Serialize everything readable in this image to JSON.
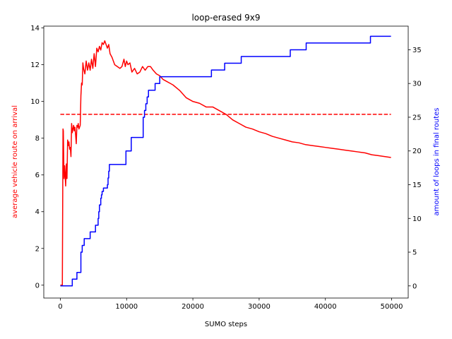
{
  "chart_data": {
    "type": "line",
    "title": "loop-erased 9x9",
    "xlabel": "SUMO steps",
    "ylabel_left": "average vehicle route on arrival",
    "ylabel_right": "amount of loops in final routes",
    "xlim": [
      -2500,
      52500
    ],
    "ylim_left": [
      -0.7,
      14.1
    ],
    "ylim_right": [
      -1.8,
      38.5
    ],
    "x_ticks": [
      0,
      10000,
      20000,
      30000,
      40000,
      50000
    ],
    "x_tick_labels": [
      "0",
      "10000",
      "20000",
      "30000",
      "40000",
      "50000"
    ],
    "y_left_ticks": [
      0,
      2,
      4,
      6,
      8,
      10,
      12,
      14
    ],
    "y_left_tick_labels": [
      "0",
      "2",
      "4",
      "6",
      "8",
      "10",
      "12",
      "14"
    ],
    "y_right_ticks": [
      0,
      5,
      10,
      15,
      20,
      25,
      30,
      35
    ],
    "y_right_tick_labels": [
      "0",
      "5",
      "10",
      "15",
      "20",
      "25",
      "30",
      "35"
    ],
    "grid": false,
    "legend": "none",
    "colors": {
      "left": "#ff0000",
      "right": "#0000ff",
      "axis": "#000000"
    },
    "series": [
      {
        "axis": "left",
        "color": "#ff0000",
        "style": "solid",
        "x": [
          0,
          300,
          400,
          450,
          550,
          650,
          800,
          900,
          1000,
          1100,
          1200,
          1300,
          1400,
          1500,
          1600,
          1700,
          1800,
          1900,
          2000,
          2100,
          2200,
          2300,
          2400,
          2500,
          2600,
          2700,
          2800,
          2900,
          3000,
          3100,
          3200,
          3300,
          3400,
          3500,
          3700,
          3900,
          4100,
          4300,
          4500,
          4700,
          4900,
          5100,
          5300,
          5500,
          5700,
          5900,
          6100,
          6300,
          6500,
          6700,
          6900,
          7100,
          7300,
          7500,
          7800,
          8200,
          8600,
          9000,
          9300,
          9600,
          9800,
          10000,
          10200,
          10500,
          10800,
          11200,
          11600,
          12000,
          12400,
          12800,
          13200,
          13600,
          14000,
          14500,
          15000,
          15500,
          16000,
          16500,
          17000,
          18000,
          19000,
          20000,
          21000,
          22000,
          22500,
          23000,
          23500,
          24000,
          25000,
          26000,
          27000,
          28000,
          29000,
          30000,
          31000,
          32000,
          33000,
          34000,
          35000,
          36000,
          37000,
          38000,
          39000,
          40000,
          41000,
          42000,
          43000,
          44000,
          45000,
          46000,
          47000,
          48000,
          49000,
          49900
        ],
        "y": [
          0,
          0,
          8.5,
          8.4,
          5.8,
          6.5,
          5.4,
          6.6,
          5.8,
          7.9,
          7.6,
          7.8,
          7.4,
          7.5,
          7.0,
          8.8,
          8.3,
          8.5,
          8.7,
          8.4,
          8.6,
          8.2,
          7.7,
          8.7,
          8.6,
          8.8,
          8.5,
          8.6,
          8.7,
          10.3,
          11.0,
          10.9,
          12.1,
          11.8,
          11.5,
          12.2,
          11.7,
          12.1,
          11.7,
          12.3,
          11.8,
          12.6,
          11.9,
          12.9,
          12.7,
          13.0,
          12.8,
          13.2,
          13.1,
          13.3,
          13.1,
          12.9,
          13.1,
          12.6,
          12.4,
          12.0,
          11.9,
          11.8,
          11.9,
          12.3,
          11.9,
          12.2,
          12.0,
          12.1,
          11.6,
          11.8,
          11.5,
          11.6,
          11.9,
          11.7,
          11.9,
          11.9,
          11.7,
          11.5,
          11.4,
          11.2,
          11.1,
          11.0,
          10.9,
          10.6,
          10.2,
          10.0,
          9.9,
          9.7,
          9.7,
          9.7,
          9.6,
          9.5,
          9.3,
          9.0,
          8.8,
          8.6,
          8.5,
          8.35,
          8.25,
          8.1,
          8.0,
          7.9,
          7.8,
          7.75,
          7.65,
          7.6,
          7.55,
          7.5,
          7.45,
          7.4,
          7.35,
          7.3,
          7.25,
          7.2,
          7.1,
          7.05,
          7.0,
          6.95
        ]
      },
      {
        "axis": "left",
        "color": "#ff0000",
        "style": "dashed",
        "x": [
          0,
          49900
        ],
        "y": [
          9.3,
          9.3
        ]
      },
      {
        "axis": "right",
        "color": "#0000ff",
        "style": "steps",
        "x": [
          0,
          1800,
          2500,
          3100,
          3300,
          3600,
          4500,
          5300,
          5700,
          5800,
          5900,
          6100,
          6200,
          6300,
          6500,
          7100,
          7200,
          7300,
          7400,
          9900,
          10700,
          12500,
          12700,
          12900,
          13100,
          13300,
          14300,
          15000,
          15600,
          22800,
          24800,
          27300,
          34700,
          37100,
          46800,
          49900
        ],
        "y": [
          0,
          1,
          2,
          5,
          6,
          7,
          8,
          9,
          10,
          11,
          12,
          13,
          13.5,
          14,
          14.5,
          15,
          16,
          17,
          18,
          20,
          22,
          25,
          26,
          27,
          28,
          29,
          30,
          31,
          31,
          32,
          33,
          34,
          35,
          36,
          37,
          37
        ]
      }
    ]
  }
}
